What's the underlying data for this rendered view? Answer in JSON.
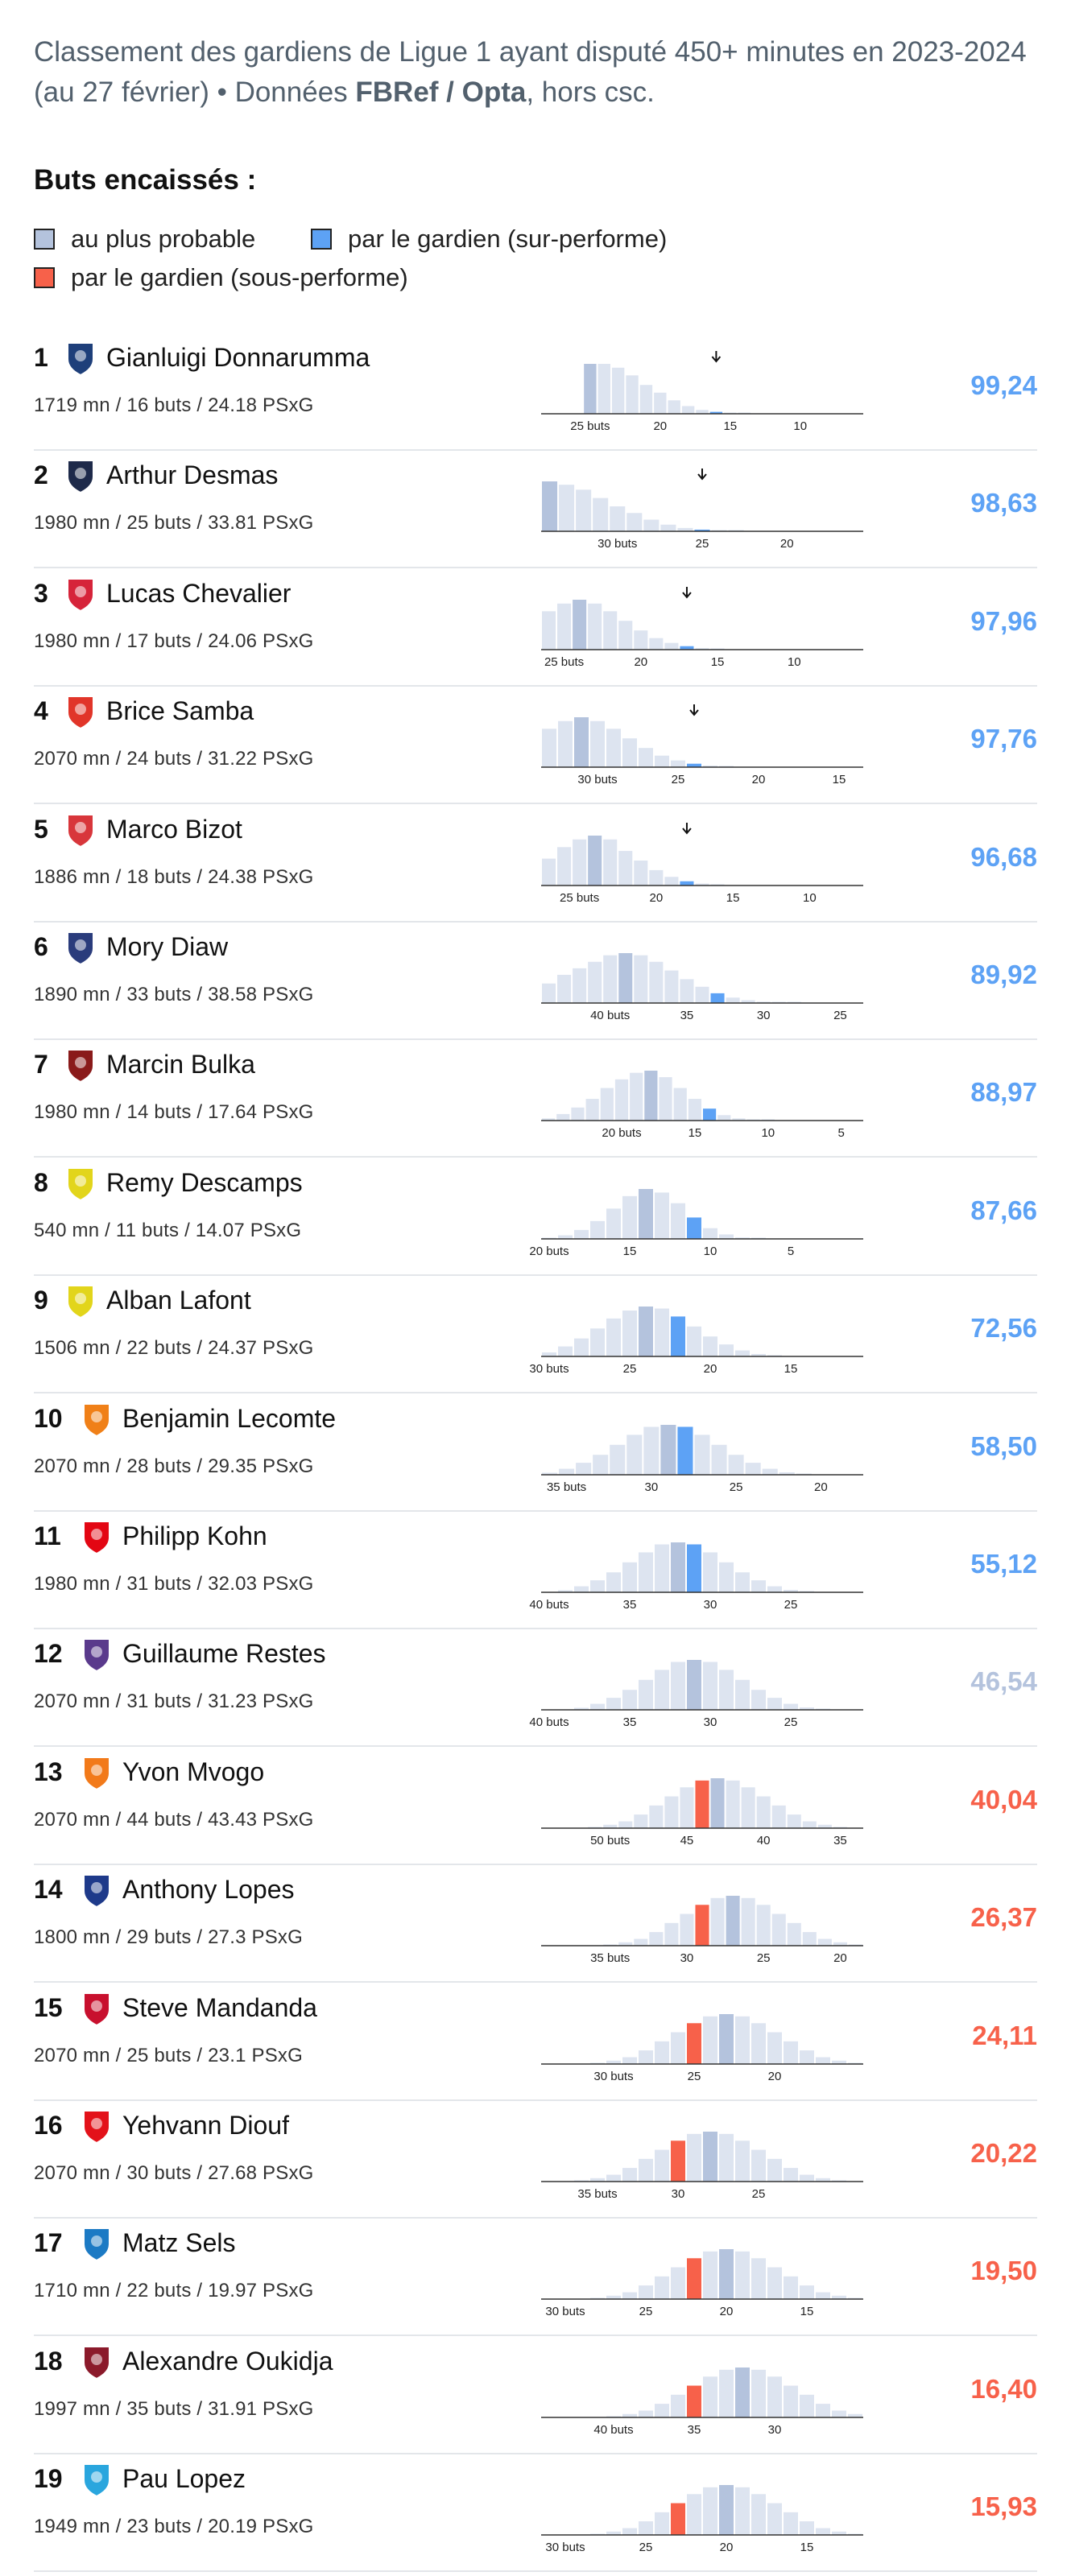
{
  "header": {
    "subtitle_pre": "Classement des gardiens de Ligue 1 ayant disputé 450+ minutes en 2023-2024 (au 27 février) • Données ",
    "subtitle_bold": "FBRef / Opta",
    "subtitle_post": ", hors csc."
  },
  "legend": {
    "title": "Buts encaissés :",
    "items": [
      {
        "label": "au plus probable",
        "color": "#b4c3dd"
      },
      {
        "label": "par le gardien (sur-performe)",
        "color": "#5da2f5"
      },
      {
        "label": "par le gardien (sous-performe)",
        "color": "#f7614a"
      }
    ]
  },
  "colors": {
    "bar": "#dde4f0",
    "probable": "#b4c3dd",
    "over": "#5da2f5",
    "under": "#f7614a",
    "score_good": "#5da2f5",
    "score_mid": "#b4c3dd",
    "score_bad": "#f7614a"
  },
  "chart_data": {
    "type": "bar",
    "x_direction": "decreasing",
    "x_unit_label": "buts",
    "players": [
      {
        "rank": "1",
        "name": "Gianluigi Donnarumma",
        "club_icon": "psg-crest-icon",
        "club_color": "#1e3f7a",
        "stats": "1719 mn / 16 buts / 24.18 PSxG",
        "score": "99,24",
        "score_class": "good",
        "x_max": 28,
        "x_min": 6,
        "probable": 25,
        "actual": 16,
        "ticks": [
          25,
          20,
          15,
          10
        ],
        "first_tick": "25 buts",
        "arrow": true,
        "values": [
          0.26,
          0.26,
          0.24,
          0.2,
          0.15,
          0.11,
          0.07,
          0.04,
          0.02,
          0.01,
          0.005,
          0.002
        ]
      },
      {
        "rank": "2",
        "name": "Arthur Desmas",
        "club_icon": "havre-crest-icon",
        "club_color": "#1e2a4a",
        "stats": "1980 mn / 25 buts / 33.81 PSxG",
        "score": "98,63",
        "score_class": "good",
        "x_max": 34,
        "x_min": 16,
        "probable": 34,
        "actual": 25,
        "ticks": [
          30,
          25,
          20
        ],
        "first_tick": "30 buts",
        "arrow": true,
        "values": [
          0.3,
          0.28,
          0.25,
          0.2,
          0.15,
          0.11,
          0.07,
          0.04,
          0.02,
          0.01,
          0.005,
          0.002
        ]
      },
      {
        "rank": "3",
        "name": "Lucas Chevalier",
        "club_icon": "lille-crest-icon",
        "club_color": "#d6243a",
        "stats": "1980 mn / 17 buts / 24.06 PSxG",
        "score": "97,96",
        "score_class": "good",
        "x_max": 26,
        "x_min": 6,
        "probable": 24,
        "actual": 17,
        "ticks": [
          25,
          20,
          15,
          10
        ],
        "first_tick": "25 buts",
        "arrow": true,
        "values": [
          0.2,
          0.24,
          0.26,
          0.24,
          0.2,
          0.15,
          0.1,
          0.06,
          0.035,
          0.018,
          0.008,
          0.003
        ]
      },
      {
        "rank": "4",
        "name": "Brice Samba",
        "club_icon": "lens-crest-icon",
        "club_color": "#e13529",
        "stats": "2070 mn / 24 buts / 31.22 PSxG",
        "score": "97,76",
        "score_class": "good",
        "x_max": 33,
        "x_min": 14,
        "probable": 31,
        "actual": 24,
        "ticks": [
          30,
          25,
          20,
          15
        ],
        "first_tick": "30 buts",
        "arrow": true,
        "values": [
          0.2,
          0.24,
          0.26,
          0.24,
          0.2,
          0.15,
          0.1,
          0.06,
          0.035,
          0.018,
          0.008,
          0.003
        ]
      },
      {
        "rank": "5",
        "name": "Marco Bizot",
        "club_icon": "brest-crest-icon",
        "club_color": "#d8363b",
        "stats": "1886 mn / 18 buts / 24.38 PSxG",
        "score": "96,68",
        "score_class": "good",
        "x_max": 27,
        "x_min": 7,
        "probable": 24,
        "actual": 18,
        "ticks": [
          25,
          20,
          15,
          10
        ],
        "first_tick": "25 buts",
        "arrow": true,
        "values": [
          0.14,
          0.2,
          0.24,
          0.26,
          0.24,
          0.18,
          0.13,
          0.08,
          0.045,
          0.022,
          0.01,
          0.004
        ]
      },
      {
        "rank": "6",
        "name": "Mory Diaw",
        "club_icon": "clermont-crest-icon",
        "club_color": "#2a3c7c",
        "stats": "1890 mn / 33 buts / 38.58 PSxG",
        "score": "89,92",
        "score_class": "good",
        "x_max": 44,
        "x_min": 24,
        "probable": 39,
        "actual": 33,
        "ticks": [
          40,
          35,
          30,
          25
        ],
        "first_tick": "40 buts",
        "arrow": false,
        "values": [
          0.09,
          0.13,
          0.16,
          0.19,
          0.22,
          0.23,
          0.22,
          0.19,
          0.15,
          0.11,
          0.075,
          0.045,
          0.025,
          0.013,
          0.006,
          0.003,
          0.001
        ]
      },
      {
        "rank": "7",
        "name": "Marcin Bulka",
        "club_icon": "nice-crest-icon",
        "club_color": "#8a1a1a",
        "stats": "1980 mn / 14 buts / 17.64 PSxG",
        "score": "88,97",
        "score_class": "good",
        "x_max": 25,
        "x_min": 4,
        "probable": 18,
        "actual": 14,
        "ticks": [
          20,
          15,
          10,
          5
        ],
        "first_tick": "20 buts",
        "arrow": false,
        "values": [
          0.01,
          0.03,
          0.06,
          0.1,
          0.15,
          0.19,
          0.22,
          0.23,
          0.2,
          0.15,
          0.1,
          0.055,
          0.025,
          0.01,
          0.004,
          0.001
        ]
      },
      {
        "rank": "8",
        "name": "Remy Descamps",
        "club_icon": "nantes-crest-icon",
        "club_color": "#e2d51b",
        "stats": "540 mn / 11 buts / 14.07 PSxG",
        "score": "87,66",
        "score_class": "good",
        "x_max": 20,
        "x_min": 1,
        "probable": 14,
        "actual": 11,
        "ticks": [
          20,
          15,
          10,
          5
        ],
        "first_tick": "20 buts",
        "arrow": false,
        "values": [
          0.005,
          0.02,
          0.05,
          0.1,
          0.17,
          0.24,
          0.28,
          0.26,
          0.2,
          0.12,
          0.06,
          0.025,
          0.008,
          0.002
        ]
      },
      {
        "rank": "9",
        "name": "Alban Lafont",
        "club_icon": "nantes-crest-icon",
        "club_color": "#e2d51b",
        "stats": "1506 mn / 22 buts / 24.37 PSxG",
        "score": "72,56",
        "score_class": "good",
        "x_max": 30,
        "x_min": 11,
        "probable": 24,
        "actual": 22,
        "ticks": [
          30,
          25,
          20,
          15
        ],
        "first_tick": "30 buts",
        "arrow": false,
        "values": [
          0.02,
          0.05,
          0.09,
          0.14,
          0.19,
          0.23,
          0.25,
          0.24,
          0.2,
          0.15,
          0.1,
          0.06,
          0.03,
          0.012,
          0.004
        ]
      },
      {
        "rank": "10",
        "name": "Benjamin Lecomte",
        "club_icon": "montpellier-crest-icon",
        "club_color": "#f08018",
        "stats": "2070 mn / 28 buts / 29.35 PSxG",
        "score": "58,50",
        "score_class": "good",
        "x_max": 36,
        "x_min": 18,
        "probable": 29,
        "actual": 28,
        "ticks": [
          35,
          30,
          25,
          20
        ],
        "first_tick": "35 buts",
        "arrow": false,
        "values": [
          0.01,
          0.03,
          0.06,
          0.1,
          0.15,
          0.2,
          0.24,
          0.25,
          0.24,
          0.2,
          0.15,
          0.1,
          0.06,
          0.03,
          0.012,
          0.004
        ]
      },
      {
        "rank": "11",
        "name": "Philipp Kohn",
        "club_icon": "monaco-crest-icon",
        "club_color": "#e30613",
        "stats": "1980 mn / 31 buts / 32.03 PSxG",
        "score": "55,12",
        "score_class": "good",
        "x_max": 40,
        "x_min": 21,
        "probable": 32,
        "actual": 31,
        "ticks": [
          40,
          35,
          30,
          25
        ],
        "first_tick": "40 buts",
        "arrow": false,
        "values": [
          0.01,
          0.03,
          0.06,
          0.1,
          0.15,
          0.2,
          0.24,
          0.25,
          0.24,
          0.2,
          0.15,
          0.1,
          0.06,
          0.03,
          0.012,
          0.004
        ]
      },
      {
        "rank": "12",
        "name": "Guillaume Restes",
        "club_icon": "toulouse-crest-icon",
        "club_color": "#5a3a8c",
        "stats": "2070 mn / 31 buts / 31.23 PSxG",
        "score": "46,54",
        "score_class": "mid",
        "x_max": 40,
        "x_min": 21,
        "probable": 31,
        "actual": 31,
        "ticks": [
          40,
          35,
          30,
          25
        ],
        "first_tick": "40 buts",
        "arrow": false,
        "values": [
          0.01,
          0.03,
          0.06,
          0.1,
          0.15,
          0.2,
          0.24,
          0.25,
          0.24,
          0.2,
          0.15,
          0.1,
          0.06,
          0.03,
          0.012,
          0.004
        ]
      },
      {
        "rank": "13",
        "name": "Yvon Mvogo",
        "club_icon": "lorient-crest-icon",
        "club_color": "#f27a1a",
        "stats": "2070 mn / 44 buts / 43.43 PSxG",
        "score": "40,04",
        "score_class": "bad",
        "x_max": 54,
        "x_min": 34,
        "probable": 43,
        "actual": 44,
        "ticks": [
          50,
          45,
          40,
          35
        ],
        "first_tick": "50 buts",
        "arrow": false,
        "values": [
          0.005,
          0.015,
          0.03,
          0.06,
          0.1,
          0.14,
          0.18,
          0.21,
          0.22,
          0.21,
          0.18,
          0.14,
          0.1,
          0.06,
          0.03,
          0.015,
          0.005
        ]
      },
      {
        "rank": "14",
        "name": "Anthony Lopes",
        "club_icon": "lyon-crest-icon",
        "club_color": "#1e3a8a",
        "stats": "1800 mn / 29 buts / 27.3 PSxG",
        "score": "26,37",
        "score_class": "bad",
        "x_max": 39,
        "x_min": 19,
        "probable": 27,
        "actual": 29,
        "ticks": [
          35,
          30,
          25,
          20
        ],
        "first_tick": "35 buts",
        "arrow": false,
        "values": [
          0.005,
          0.015,
          0.03,
          0.06,
          0.1,
          0.14,
          0.18,
          0.21,
          0.22,
          0.21,
          0.18,
          0.14,
          0.1,
          0.06,
          0.03,
          0.015,
          0.005
        ]
      },
      {
        "rank": "15",
        "name": "Steve Mandanda",
        "club_icon": "rennes-crest-icon",
        "club_color": "#c8102e",
        "stats": "2070 mn / 25 buts / 23.1 PSxG",
        "score": "24,11",
        "score_class": "bad",
        "x_max": 34,
        "x_min": 15,
        "probable": 23,
        "actual": 25,
        "ticks": [
          30,
          25,
          20
        ],
        "first_tick": "30 buts",
        "arrow": false,
        "values": [
          0.005,
          0.015,
          0.03,
          0.06,
          0.1,
          0.14,
          0.18,
          0.21,
          0.22,
          0.21,
          0.18,
          0.14,
          0.1,
          0.06,
          0.03,
          0.015,
          0.005
        ]
      },
      {
        "rank": "16",
        "name": "Yehvann Diouf",
        "club_icon": "reims-crest-icon",
        "club_color": "#e3121a",
        "stats": "2070 mn / 30 buts / 27.68 PSxG",
        "score": "20,22",
        "score_class": "bad",
        "x_max": 38,
        "x_min": 19,
        "probable": 28,
        "actual": 30,
        "ticks": [
          35,
          30,
          25
        ],
        "first_tick": "35 buts",
        "arrow": false,
        "values": [
          0.005,
          0.015,
          0.03,
          0.06,
          0.1,
          0.14,
          0.18,
          0.21,
          0.22,
          0.21,
          0.18,
          0.14,
          0.1,
          0.06,
          0.03,
          0.015,
          0.005
        ]
      },
      {
        "rank": "17",
        "name": "Matz Sels",
        "club_icon": "strasbourg-crest-icon",
        "club_color": "#1c7ac4",
        "stats": "1710 mn / 22 buts / 19.97 PSxG",
        "score": "19,50",
        "score_class": "bad",
        "x_max": 31,
        "x_min": 12,
        "probable": 20,
        "actual": 22,
        "ticks": [
          30,
          25,
          20,
          15
        ],
        "first_tick": "30 buts",
        "arrow": false,
        "values": [
          0.005,
          0.015,
          0.03,
          0.06,
          0.1,
          0.14,
          0.18,
          0.21,
          0.22,
          0.21,
          0.18,
          0.14,
          0.1,
          0.06,
          0.03,
          0.015,
          0.005
        ]
      },
      {
        "rank": "18",
        "name": "Alexandre Oukidja",
        "club_icon": "metz-crest-icon",
        "club_color": "#8b1a2b",
        "stats": "1997 mn / 35 buts / 31.91 PSxG",
        "score": "16,40",
        "score_class": "bad",
        "x_max": 44,
        "x_min": 25,
        "probable": 32,
        "actual": 35,
        "ticks": [
          40,
          35,
          30
        ],
        "first_tick": "40 buts",
        "arrow": false,
        "values": [
          0.005,
          0.015,
          0.03,
          0.06,
          0.1,
          0.14,
          0.18,
          0.21,
          0.22,
          0.21,
          0.18,
          0.14,
          0.1,
          0.06,
          0.03,
          0.015,
          0.005
        ]
      },
      {
        "rank": "19",
        "name": "Pau Lopez",
        "club_icon": "marseille-crest-icon",
        "club_color": "#2aa6de",
        "stats": "1949 mn / 23 buts / 20.19 PSxG",
        "score": "15,93",
        "score_class": "bad",
        "x_max": 31,
        "x_min": 12,
        "probable": 20,
        "actual": 23,
        "ticks": [
          30,
          25,
          20,
          15
        ],
        "first_tick": "30 buts",
        "arrow": false,
        "values": [
          0.005,
          0.015,
          0.03,
          0.06,
          0.1,
          0.14,
          0.18,
          0.21,
          0.22,
          0.21,
          0.18,
          0.14,
          0.1,
          0.06,
          0.03,
          0.015,
          0.005
        ]
      }
    ]
  }
}
